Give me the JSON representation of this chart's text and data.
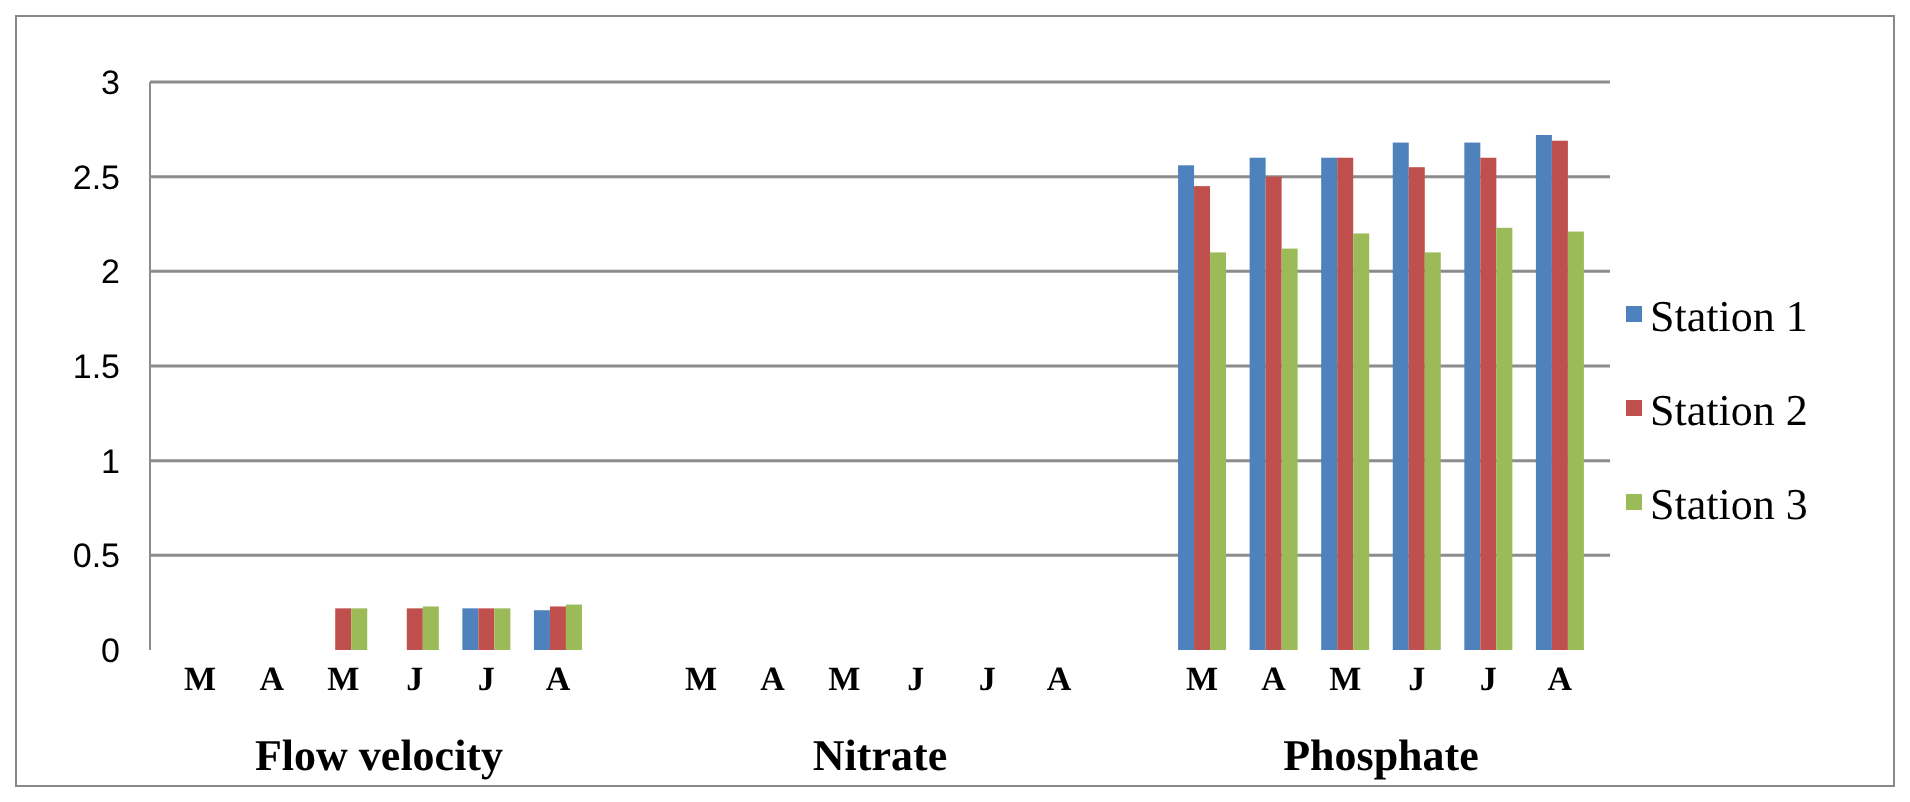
{
  "chart_data": {
    "type": "bar",
    "categories": [
      "M",
      "A",
      "M",
      "J",
      "J",
      "A",
      null,
      "M",
      "A",
      "M",
      "J",
      "J",
      "A",
      null,
      "M",
      "A",
      "M",
      "J",
      "J",
      "A"
    ],
    "series": [
      {
        "name": "Station 1",
        "color": "#4f81bd",
        "values": [
          null,
          null,
          null,
          null,
          0.22,
          0.21,
          null,
          null,
          null,
          null,
          null,
          null,
          null,
          null,
          2.56,
          2.6,
          2.6,
          2.68,
          2.68,
          2.72
        ]
      },
      {
        "name": "Station 2",
        "color": "#c0504d",
        "values": [
          null,
          null,
          0.22,
          0.22,
          0.22,
          0.23,
          null,
          null,
          null,
          null,
          null,
          null,
          null,
          null,
          2.45,
          2.5,
          2.6,
          2.55,
          2.6,
          2.69
        ]
      },
      {
        "name": "Station 3",
        "color": "#9bbb59",
        "values": [
          null,
          null,
          0.22,
          0.23,
          0.22,
          0.24,
          null,
          null,
          null,
          null,
          null,
          null,
          null,
          null,
          2.1,
          2.12,
          2.2,
          2.1,
          2.23,
          2.21
        ]
      }
    ],
    "ylim": [
      0,
      3
    ],
    "yticks": [
      0,
      0.5,
      1,
      1.5,
      2,
      2.5,
      3
    ],
    "grid": "y",
    "legend": "right",
    "annotations": [
      "Flow velocity",
      "Nitrate",
      "Phosphate"
    ]
  }
}
